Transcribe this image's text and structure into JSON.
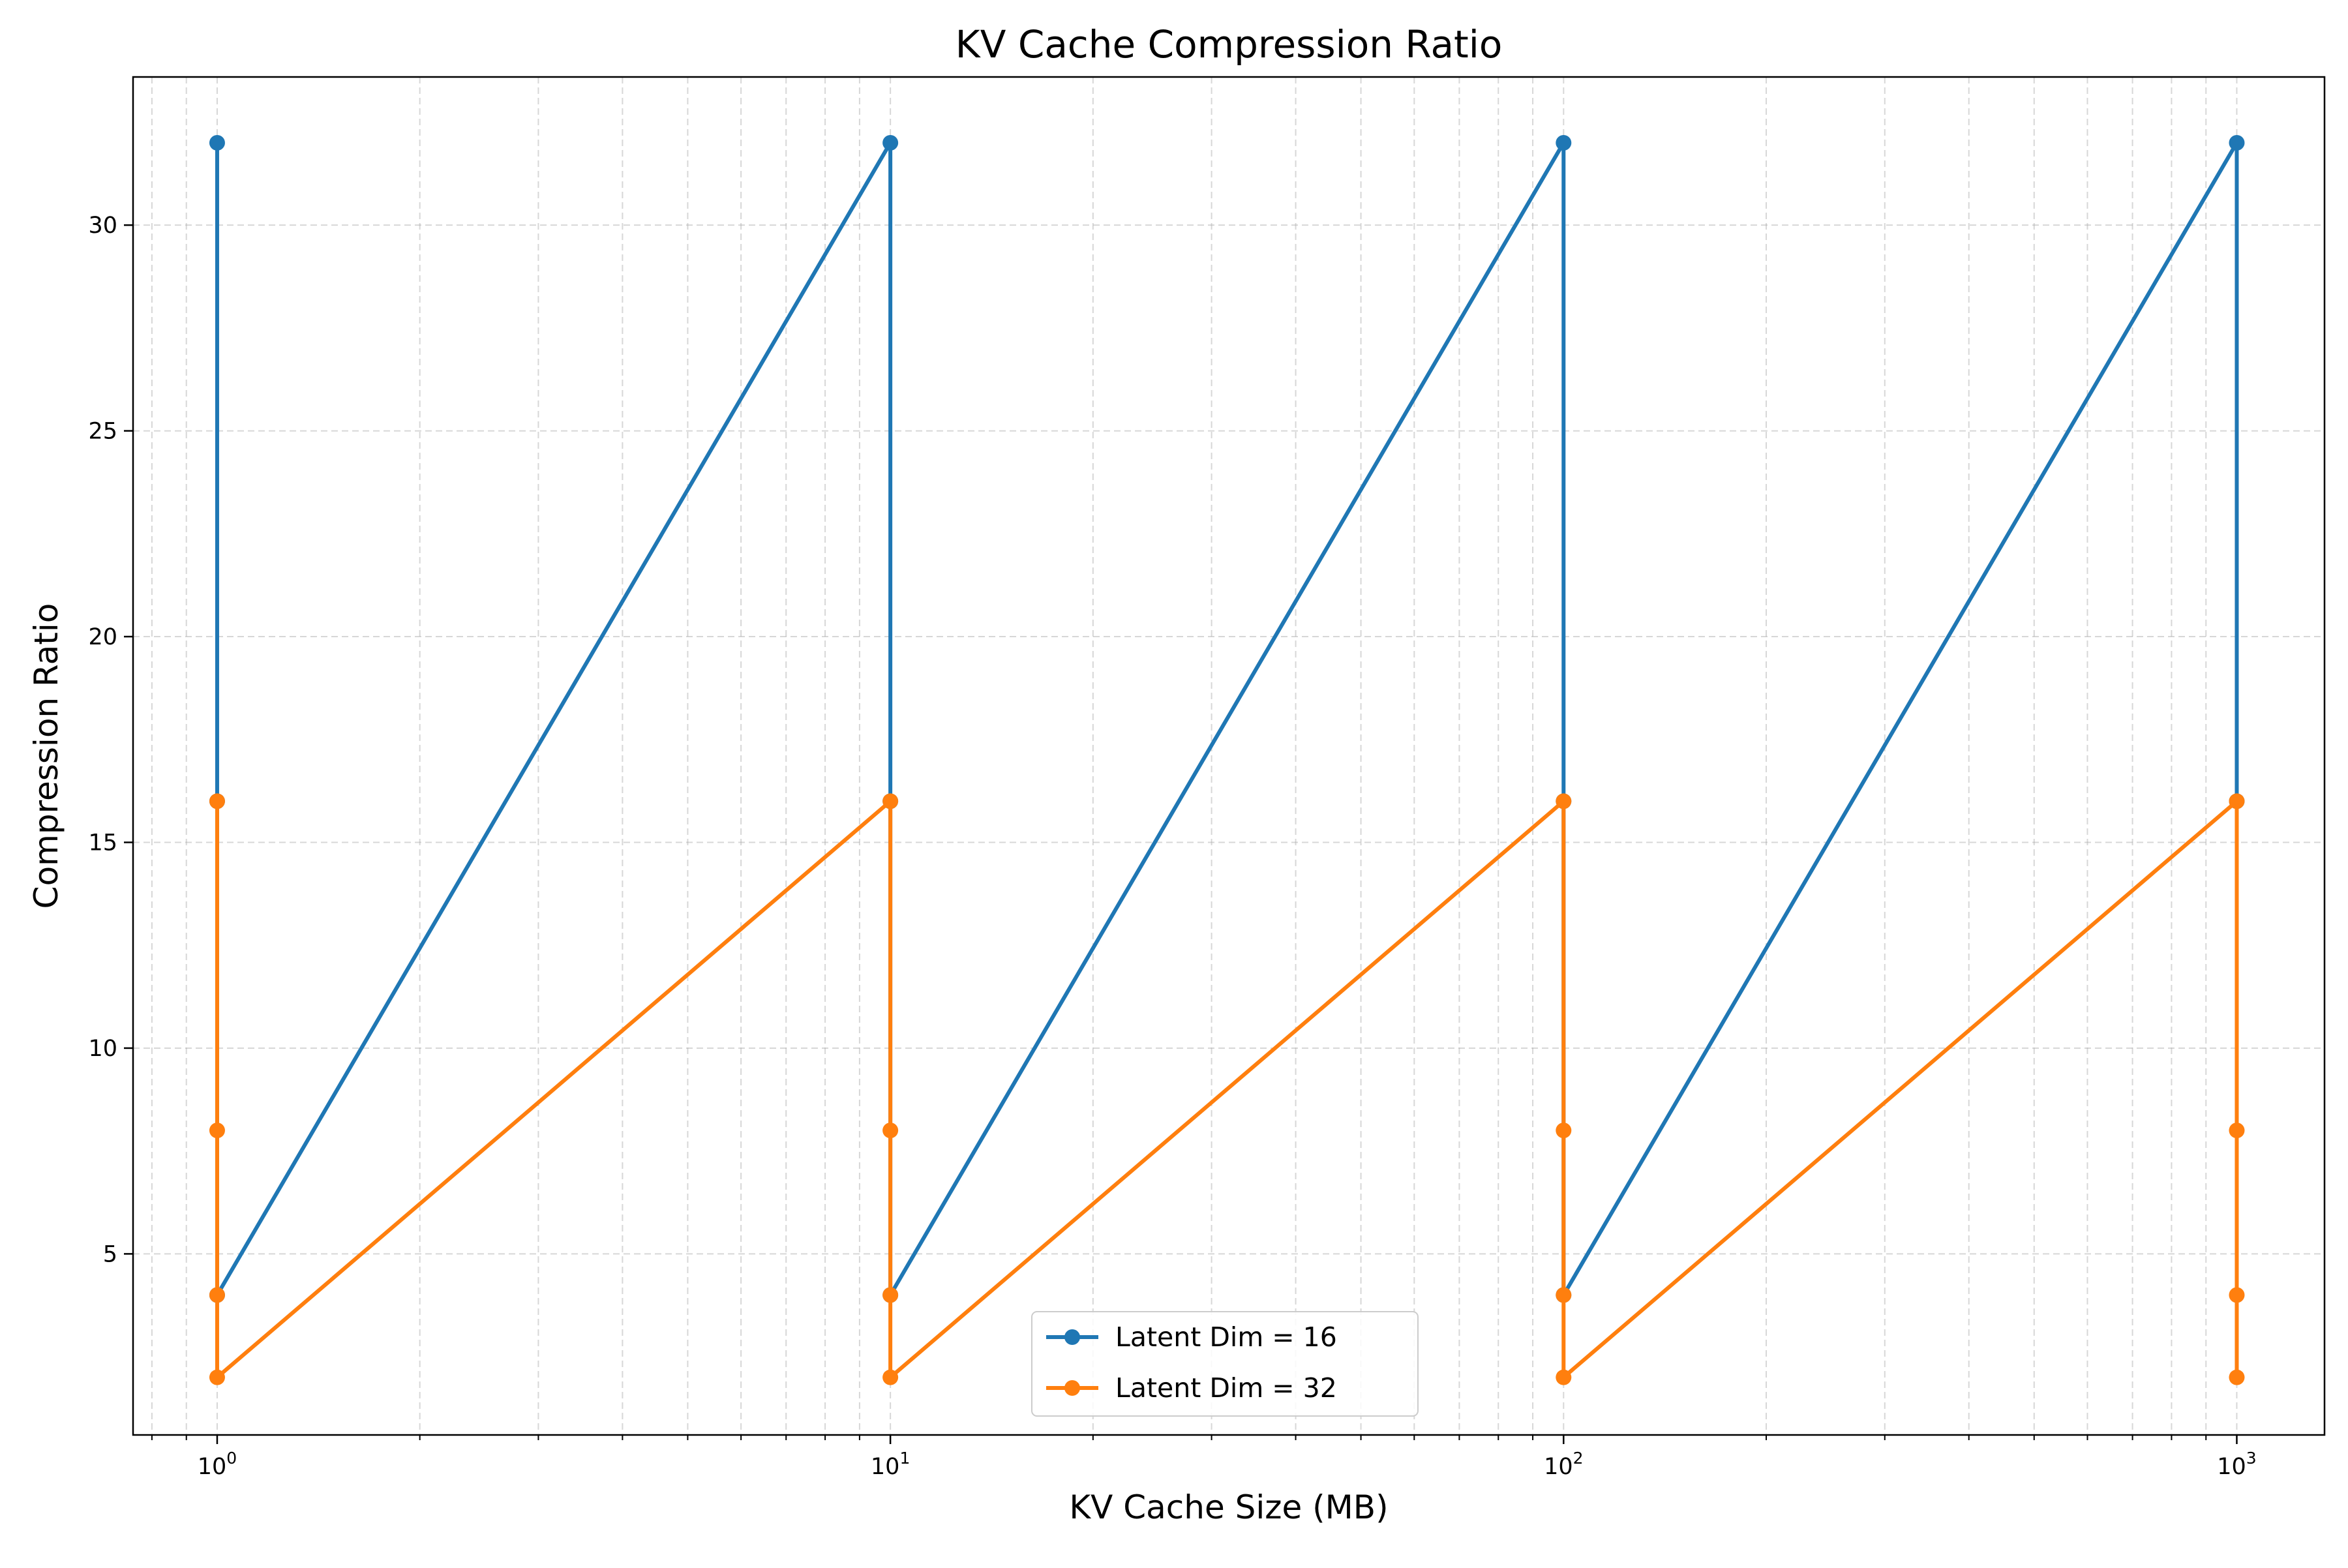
{
  "chart_data": {
    "type": "line",
    "title": "KV Cache Compression Ratio",
    "xlabel": "KV Cache Size (MB)",
    "ylabel": "Compression Ratio",
    "x_scale": "log",
    "xlim": [
      0.75,
      1350
    ],
    "ylim": [
      0.6,
      33.6
    ],
    "x_ticks": [
      {
        "value": 1,
        "base": "10",
        "exp": "0"
      },
      {
        "value": 10,
        "base": "10",
        "exp": "1"
      },
      {
        "value": 100,
        "base": "10",
        "exp": "2"
      },
      {
        "value": 1000,
        "base": "10",
        "exp": "3"
      }
    ],
    "y_ticks": [
      {
        "value": 5,
        "label": "5"
      },
      {
        "value": 10,
        "label": "10"
      },
      {
        "value": 15,
        "label": "15"
      },
      {
        "value": 20,
        "label": "20"
      },
      {
        "value": 25,
        "label": "25"
      },
      {
        "value": 30,
        "label": "30"
      }
    ],
    "grid": true,
    "legend_position": "bottom-center",
    "series": [
      {
        "name": "Latent Dim = 16",
        "color": "#1f77b4",
        "points": [
          [
            1,
            32
          ],
          [
            1,
            16
          ],
          [
            1,
            4
          ],
          [
            10,
            32
          ],
          [
            10,
            16
          ],
          [
            10,
            4
          ],
          [
            100,
            32
          ],
          [
            100,
            16
          ],
          [
            100,
            4
          ],
          [
            1000,
            32
          ],
          [
            1000,
            16
          ]
        ]
      },
      {
        "name": "Latent Dim = 32",
        "color": "#ff7f0e",
        "points": [
          [
            1,
            16
          ],
          [
            1,
            8
          ],
          [
            1,
            4
          ],
          [
            1,
            2
          ],
          [
            10,
            16
          ],
          [
            10,
            8
          ],
          [
            10,
            4
          ],
          [
            10,
            2
          ],
          [
            100,
            16
          ],
          [
            100,
            8
          ],
          [
            100,
            4
          ],
          [
            100,
            2
          ],
          [
            1000,
            16
          ],
          [
            1000,
            8
          ],
          [
            1000,
            4
          ],
          [
            1000,
            2
          ]
        ]
      }
    ]
  }
}
